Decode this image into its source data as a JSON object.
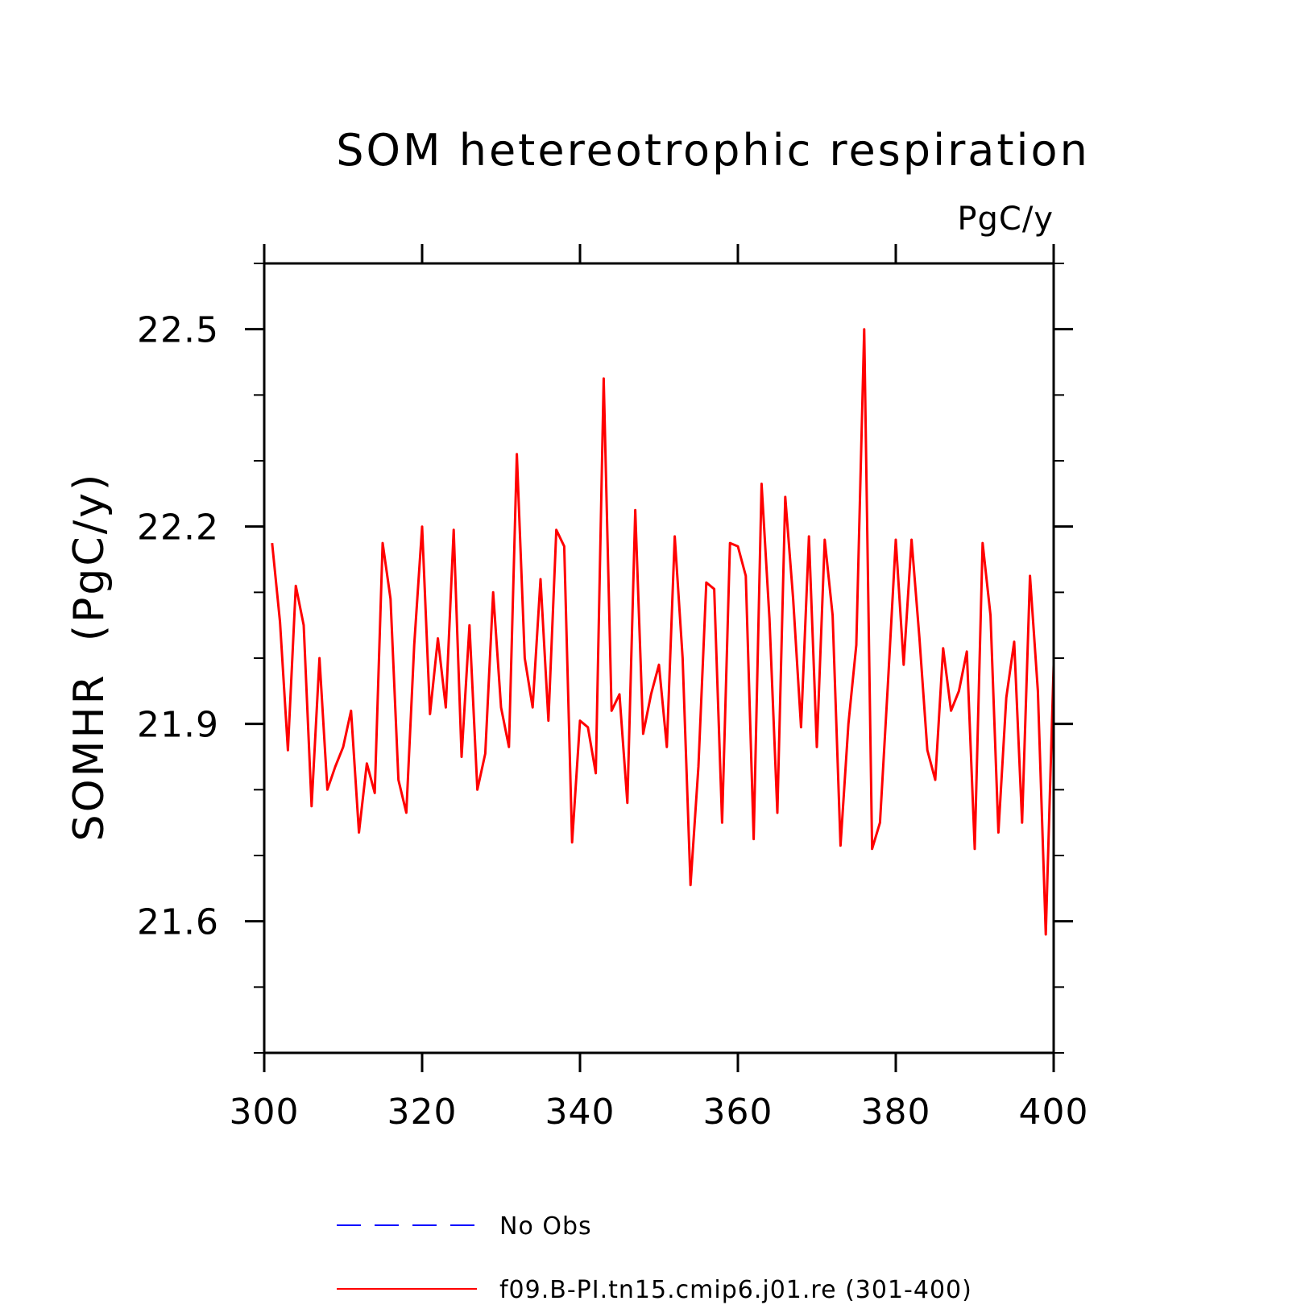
{
  "chart_data": {
    "type": "line",
    "title": "SOM hetereotrophic respiration",
    "units_label": "PgC/y",
    "ylabel": "SOMHR  (PgC/y)",
    "xlabel": "",
    "xlim": [
      300,
      400
    ],
    "ylim": [
      21.4,
      22.6
    ],
    "x_major_ticks": [
      300,
      320,
      340,
      360,
      380,
      400
    ],
    "x_tick_labels": [
      "300",
      "320",
      "340",
      "360",
      "380",
      "400"
    ],
    "y_major_ticks": [
      21.6,
      21.9,
      22.2,
      22.5
    ],
    "y_tick_labels": [
      "21.6",
      "21.9",
      "22.2",
      "22.5"
    ],
    "y_minor_step": 0.1,
    "x_minor_step": 20,
    "grid": false,
    "legend_position": "bottom",
    "series": [
      {
        "name": "No Obs",
        "color": "#0000ff",
        "dash": "dashed",
        "x": [],
        "values": []
      },
      {
        "name": "f09.B-PI.tn15.cmip6.j01.re (301-400)",
        "color": "#ff0000",
        "dash": "solid",
        "x": [
          301,
          302,
          303,
          304,
          305,
          306,
          307,
          308,
          309,
          310,
          311,
          312,
          313,
          314,
          315,
          316,
          317,
          318,
          319,
          320,
          321,
          322,
          323,
          324,
          325,
          326,
          327,
          328,
          329,
          330,
          331,
          332,
          333,
          334,
          335,
          336,
          337,
          338,
          339,
          340,
          341,
          342,
          343,
          344,
          345,
          346,
          347,
          348,
          349,
          350,
          351,
          352,
          353,
          354,
          355,
          356,
          357,
          358,
          359,
          360,
          361,
          362,
          363,
          364,
          365,
          366,
          367,
          368,
          369,
          370,
          371,
          372,
          373,
          374,
          375,
          376,
          377,
          378,
          379,
          380,
          381,
          382,
          383,
          384,
          385,
          386,
          387,
          388,
          389,
          390,
          391,
          392,
          393,
          394,
          395,
          396,
          397,
          398,
          399,
          400
        ],
        "values": [
          22.175,
          22.055,
          21.86,
          22.11,
          22.05,
          21.775,
          22.0,
          21.8,
          21.835,
          21.865,
          21.92,
          21.735,
          21.84,
          21.795,
          22.175,
          22.09,
          21.815,
          21.765,
          22.02,
          22.2,
          21.915,
          22.03,
          21.925,
          22.195,
          21.85,
          22.05,
          21.8,
          21.855,
          22.1,
          21.925,
          21.865,
          22.31,
          22.0,
          21.925,
          22.12,
          21.905,
          22.195,
          22.17,
          21.72,
          21.905,
          21.895,
          21.825,
          22.425,
          21.92,
          21.945,
          21.78,
          22.225,
          21.885,
          21.945,
          21.99,
          21.865,
          22.185,
          22.0,
          21.655,
          21.835,
          22.115,
          22.105,
          21.75,
          22.175,
          22.17,
          22.125,
          21.725,
          22.265,
          22.06,
          21.765,
          22.245,
          22.09,
          21.895,
          22.185,
          21.865,
          22.18,
          22.065,
          21.715,
          21.9,
          22.02,
          22.5,
          21.71,
          21.75,
          21.96,
          22.18,
          21.99,
          22.18,
          22.03,
          21.86,
          21.815,
          22.015,
          21.92,
          21.95,
          22.01,
          21.71,
          22.175,
          22.065,
          21.735,
          21.94,
          22.025,
          21.75,
          22.125,
          21.95,
          21.58,
          21.99
        ]
      }
    ]
  }
}
